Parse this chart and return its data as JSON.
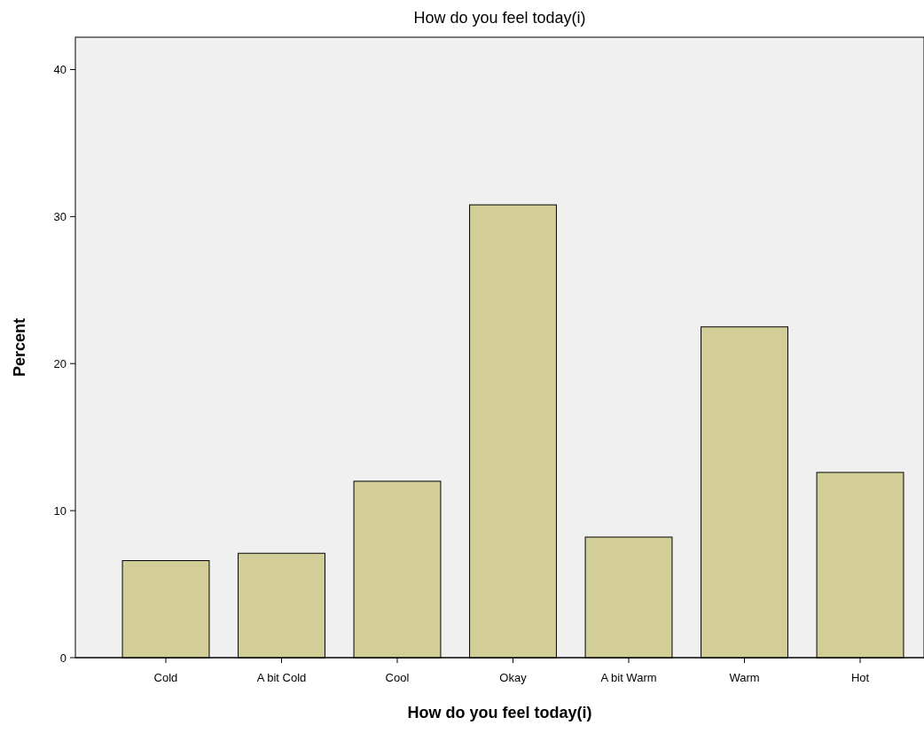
{
  "chart_data": {
    "type": "bar",
    "title": "How do you feel today(i)",
    "xlabel": "How do you feel today(i)",
    "ylabel": "Percent",
    "categories": [
      "Cold",
      "A bit Cold",
      "Cool",
      "Okay",
      "A bit Warm",
      "Warm",
      "Hot"
    ],
    "values": [
      6.6,
      7.1,
      12.0,
      30.8,
      8.2,
      22.5,
      12.6
    ],
    "color": "#d3ce97",
    "ylim": [
      0,
      42.2
    ],
    "yticks": [
      0,
      10,
      20,
      30,
      40
    ],
    "grid": false
  }
}
